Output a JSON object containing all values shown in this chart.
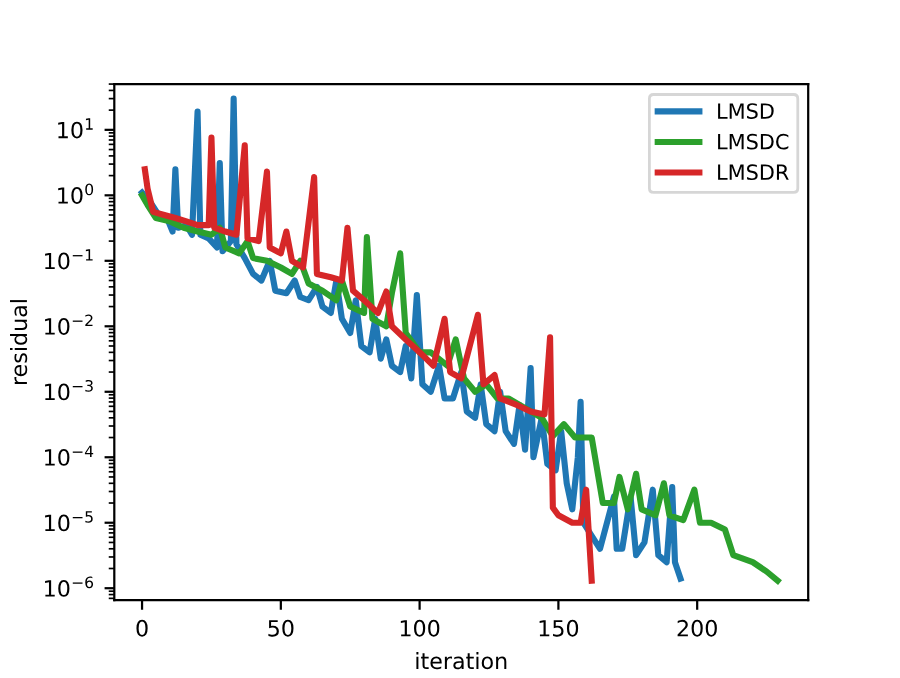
{
  "chart_data": {
    "type": "line",
    "xlabel": "iteration",
    "ylabel": "residual",
    "log": "y",
    "legend": "top right",
    "grid": false,
    "xlim": [
      -10,
      240
    ],
    "xticks": [
      0,
      50,
      100,
      150,
      200
    ],
    "ylim": [
      6.6e-07,
      50
    ],
    "yticks": [
      {
        "value": 1e-06,
        "label": "10$^{−6}$"
      },
      {
        "value": 1e-05,
        "label": "10$^{−5}$"
      },
      {
        "value": 0.0001,
        "label": "10$^{−4}$"
      },
      {
        "value": 0.001,
        "label": "10$^{−3}$"
      },
      {
        "value": 0.01,
        "label": "10$^{−2}$"
      },
      {
        "value": 0.1,
        "label": "10$^{−1}$"
      },
      {
        "value": 1,
        "label": "10$^{0}$"
      },
      {
        "value": 10,
        "label": "10$^{1}$"
      }
    ],
    "series": [
      {
        "name": "LMSD",
        "color": "#1f77b4",
        "x": [
          0,
          3,
          6,
          9,
          11,
          12,
          13,
          16,
          18,
          20,
          21,
          24,
          27,
          28,
          29,
          32,
          33,
          34,
          37,
          40,
          43,
          46,
          48,
          52,
          55,
          57,
          60,
          63,
          65,
          68,
          70,
          72,
          75,
          77,
          79,
          82,
          84,
          86,
          88,
          90,
          93,
          95,
          97,
          99,
          101,
          104,
          107,
          109,
          112,
          115,
          117,
          120,
          122,
          124,
          127,
          129,
          131,
          134,
          136,
          138,
          140,
          141,
          144,
          146,
          149,
          151,
          153,
          155,
          157,
          158,
          159,
          162,
          165,
          170,
          171,
          173,
          176,
          178,
          181,
          184,
          186,
          189,
          191,
          192,
          194
        ],
        "values": [
          1.1,
          0.79,
          0.5,
          0.45,
          0.28,
          2.5,
          0.32,
          0.35,
          0.25,
          19,
          0.25,
          0.22,
          0.16,
          3.1,
          0.14,
          0.2,
          30,
          0.18,
          0.11,
          0.063,
          0.05,
          0.1,
          0.035,
          0.032,
          0.05,
          0.028,
          0.025,
          0.04,
          0.02,
          0.016,
          0.05,
          0.013,
          0.0079,
          0.025,
          0.005,
          0.004,
          0.013,
          0.0032,
          0.0063,
          0.0025,
          0.002,
          0.005,
          0.0016,
          0.03,
          0.0013,
          0.001,
          0.0025,
          0.00079,
          0.00079,
          0.002,
          0.0005,
          0.0004,
          0.0013,
          0.00032,
          0.00025,
          0.001,
          0.00025,
          0.00016,
          0.00063,
          0.00013,
          0.0023,
          0.0001,
          0.0004,
          7.9e-05,
          6.3e-05,
          0.00025,
          4e-05,
          1.6e-05,
          0.0001,
          0.0007,
          1e-05,
          6.3e-06,
          4e-06,
          2.5e-05,
          4e-06,
          4e-06,
          2.5e-05,
          3.2e-06,
          5e-06,
          3.2e-05,
          3.2e-06,
          2.5e-06,
          3.5e-05,
          2.5e-06,
          1.4e-06
        ]
      },
      {
        "name": "LMSDC",
        "color": "#2ca02c",
        "x": [
          0,
          2,
          5,
          10,
          15,
          20,
          25,
          28,
          30,
          35,
          38,
          40,
          45,
          50,
          54,
          57,
          60,
          65,
          70,
          72,
          75,
          80,
          81,
          83,
          88,
          90,
          93,
          95,
          100,
          104,
          110,
          113,
          116,
          120,
          124,
          128,
          132,
          136,
          140,
          144,
          148,
          152,
          156,
          162,
          166,
          170,
          172,
          175,
          178,
          180,
          185,
          188,
          190,
          195,
          199,
          201,
          205,
          210,
          213,
          220,
          225,
          229
        ],
        "values": [
          1,
          0.71,
          0.45,
          0.4,
          0.32,
          0.28,
          0.25,
          0.32,
          0.16,
          0.13,
          0.2,
          0.11,
          0.1,
          0.079,
          0.063,
          0.1,
          0.045,
          0.035,
          0.025,
          0.05,
          0.02,
          0.016,
          0.23,
          0.013,
          0.01,
          0.032,
          0.13,
          0.0079,
          0.004,
          0.004,
          0.0025,
          0.0063,
          0.0016,
          0.001,
          0.0013,
          0.00079,
          0.00079,
          0.00063,
          0.0005,
          0.0004,
          0.00021,
          0.00032,
          0.0002,
          0.0002,
          2e-05,
          2e-05,
          5e-05,
          1.6e-05,
          5.6e-05,
          1.6e-05,
          1.3e-05,
          4e-05,
          1.3e-05,
          1.1e-05,
          3.2e-05,
          1e-05,
          1e-05,
          7.9e-06,
          3.2e-06,
          2.5e-06,
          1.8e-06,
          1.3e-06
        ]
      },
      {
        "name": "LMSDR",
        "color": "#d62728",
        "x": [
          1,
          2,
          4,
          8,
          12,
          16,
          20,
          24,
          25,
          26,
          30,
          34,
          37,
          38,
          42,
          45,
          46,
          50,
          52,
          54,
          58,
          62,
          63,
          68,
          72,
          74,
          76,
          80,
          85,
          88,
          90,
          95,
          100,
          105,
          109,
          111,
          115,
          121,
          123,
          127,
          129,
          135,
          140,
          145,
          147,
          148,
          150,
          155,
          158,
          160,
          162
        ],
        "values": [
          2.5,
          1.26,
          0.56,
          0.5,
          0.45,
          0.4,
          0.35,
          0.35,
          7.6,
          0.32,
          0.28,
          0.25,
          5.8,
          0.22,
          0.2,
          2.3,
          0.16,
          0.13,
          0.28,
          0.1,
          0.079,
          1.9,
          0.063,
          0.056,
          0.05,
          0.32,
          0.035,
          0.025,
          0.016,
          0.034,
          0.01,
          0.0063,
          0.004,
          0.0025,
          0.013,
          0.002,
          0.0016,
          0.015,
          0.0013,
          0.0018,
          0.00079,
          0.00063,
          0.0005,
          0.00045,
          0.0068,
          1.7e-05,
          1.3e-05,
          1e-05,
          1e-05,
          3.2e-05,
          1.3e-06
        ]
      }
    ]
  }
}
